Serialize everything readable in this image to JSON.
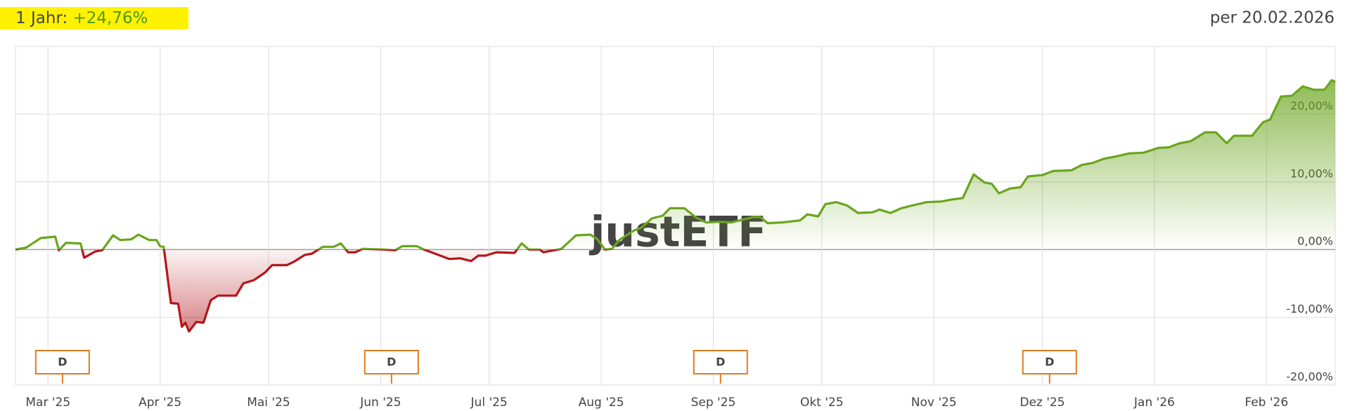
{
  "chart_data": {
    "type": "line",
    "title": "1 Jahr:",
    "performance": "+24,76%",
    "as_of": "per 20.02.2026",
    "watermark": "justETF",
    "x": [
      0,
      3,
      7,
      11,
      12,
      14,
      18,
      19,
      22,
      24,
      27,
      29,
      32,
      34,
      37,
      39,
      40,
      41,
      43,
      45,
      46,
      47,
      48,
      50,
      52,
      54,
      56,
      61,
      63,
      66,
      69,
      71,
      75,
      77,
      80,
      82,
      85,
      88,
      90,
      92,
      94,
      96,
      102,
      105,
      107,
      111,
      113,
      117,
      120,
      123,
      126,
      128,
      130,
      133,
      138,
      140,
      142,
      145,
      146,
      151,
      155,
      159,
      161,
      163,
      165,
      167,
      171,
      173,
      176,
      179,
      181,
      185,
      188,
      191,
      195,
      198,
      201,
      204,
      206,
      208,
      212,
      217,
      219,
      222,
      224,
      227,
      230,
      233,
      237,
      239,
      242,
      245,
      248,
      252,
      256,
      259,
      262,
      265,
      268,
      270,
      272,
      275,
      278,
      280,
      284,
      287,
      292,
      295,
      298,
      301,
      304,
      308,
      312,
      316,
      319,
      322,
      325,
      329,
      332,
      335,
      337,
      342,
      345,
      347,
      350,
      353,
      356,
      359,
      362,
      364,
      365
    ],
    "values": [
      0,
      0.3,
      1.7,
      1.9,
      -0.1,
      1.0,
      0.9,
      -1.2,
      -0.3,
      -0.1,
      2.1,
      1.4,
      1.5,
      2.2,
      1.4,
      1.4,
      0.5,
      0.4,
      -7.9,
      -8.0,
      -11.4,
      -10.8,
      -12.1,
      -10.7,
      -10.8,
      -7.5,
      -6.8,
      -6.8,
      -5.0,
      -4.5,
      -3.4,
      -2.3,
      -2.3,
      -1.8,
      -0.8,
      -0.6,
      0.4,
      0.4,
      0.9,
      -0.4,
      -0.4,
      0.1,
      0,
      -0.1,
      0.5,
      0.5,
      0,
      -0.8,
      -1.4,
      -1.3,
      -1.7,
      -0.9,
      -0.9,
      -0.4,
      -0.5,
      0.9,
      0,
      0,
      -0.4,
      0.1,
      2.1,
      2.2,
      1.5,
      0,
      0.1,
      1.4,
      2.8,
      3.2,
      4.6,
      5.0,
      6.1,
      6.1,
      4.8,
      4.0,
      4.1,
      4.0,
      4.4,
      4.8,
      4.8,
      3.9,
      4.0,
      4.3,
      5.2,
      4.9,
      6.7,
      7.0,
      6.5,
      5.4,
      5.5,
      5.9,
      5.4,
      6.1,
      6.5,
      7.0,
      7.1,
      7.4,
      7.6,
      11.1,
      9.9,
      9.7,
      8.3,
      9.0,
      9.2,
      10.8,
      11.0,
      11.6,
      11.7,
      12.5,
      12.8,
      13.4,
      13.7,
      14.2,
      14.3,
      15.0,
      15.1,
      15.7,
      16.0,
      17.3,
      17.3,
      15.7,
      16.8,
      16.8,
      18.8,
      19.2,
      22.6,
      22.7,
      24.1,
      23.6,
      23.6,
      25.0,
      24.76
    ],
    "positive_color": "#6aa51e",
    "negative_color": "#b3161b",
    "xlim": [
      0,
      365
    ],
    "xticks": [
      {
        "value": 9,
        "label": "Mar '25"
      },
      {
        "value": 40,
        "label": "Apr '25"
      },
      {
        "value": 70,
        "label": "Mai '25"
      },
      {
        "value": 101,
        "label": "Jun '25"
      },
      {
        "value": 131,
        "label": "Jul '25"
      },
      {
        "value": 162,
        "label": "Aug '25"
      },
      {
        "value": 193,
        "label": "Sep '25"
      },
      {
        "value": 223,
        "label": "Okt '25"
      },
      {
        "value": 254,
        "label": "Nov '25"
      },
      {
        "value": 284,
        "label": "Dez '25"
      },
      {
        "value": 315,
        "label": "Jan '26"
      },
      {
        "value": 346,
        "label": "Feb '26"
      }
    ],
    "ylim": [
      -20,
      30
    ],
    "yticks": [
      {
        "value": -20,
        "label": "-20,00%"
      },
      {
        "value": -10,
        "label": "-10,00%"
      },
      {
        "value": 0,
        "label": "0,00%"
      },
      {
        "value": 10,
        "label": "10,00%"
      },
      {
        "value": 20,
        "label": "20,00%"
      }
    ],
    "grid": true,
    "markers": [
      {
        "x": 13,
        "label": "D"
      },
      {
        "x": 104,
        "label": "D"
      },
      {
        "x": 195,
        "label": "D"
      },
      {
        "x": 286,
        "label": "D"
      }
    ]
  }
}
